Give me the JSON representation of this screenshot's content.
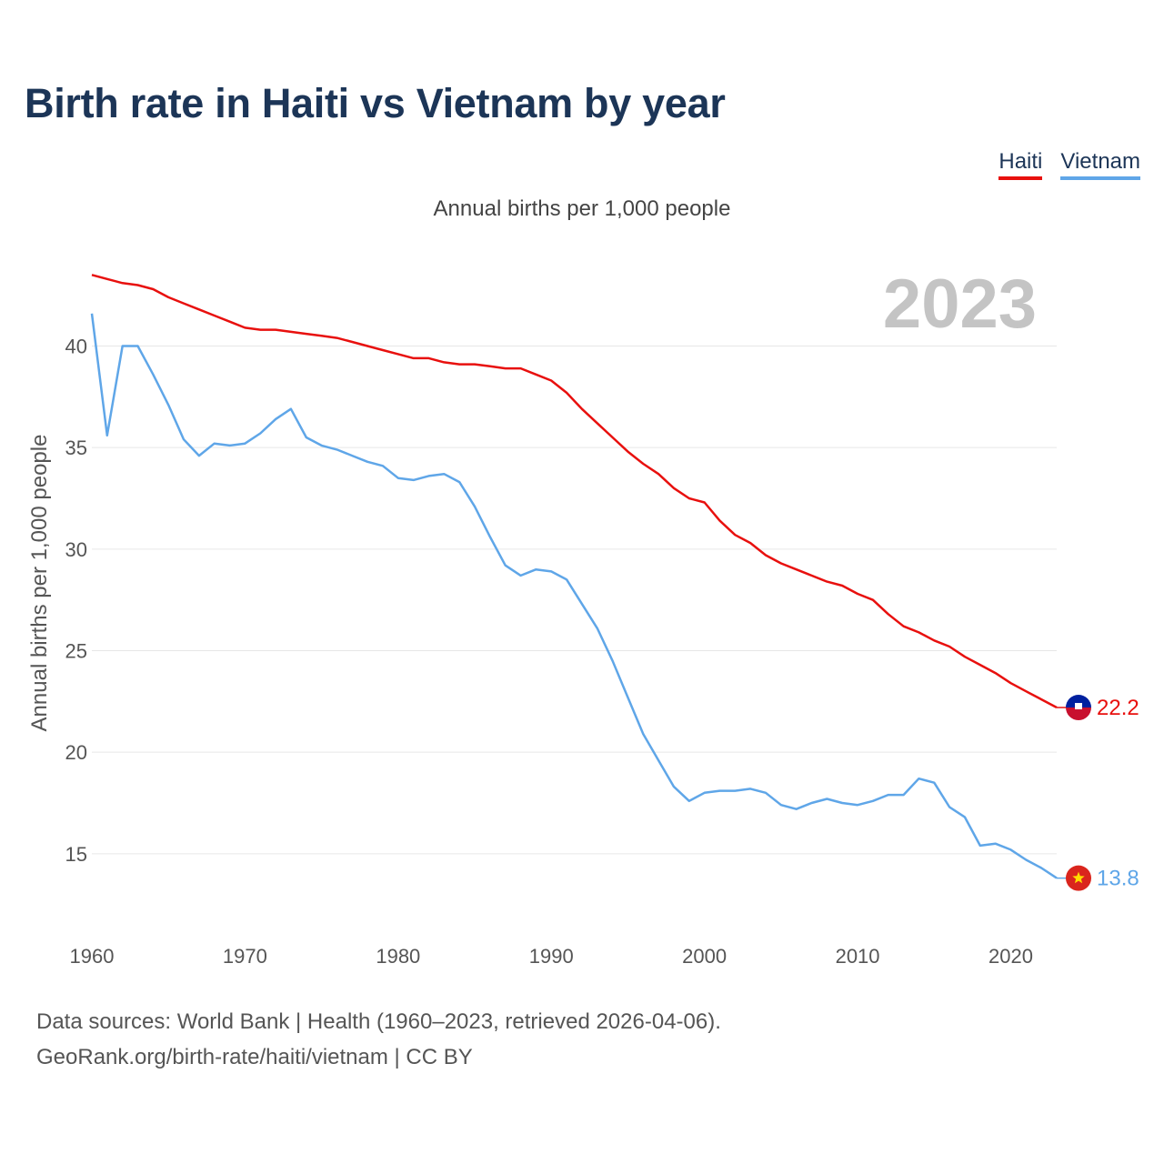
{
  "title": "Birth rate in Haiti vs Vietnam by year",
  "legend": [
    {
      "name": "Haiti",
      "color": "#e8100e"
    },
    {
      "name": "Vietnam",
      "color": "#5fa6e8"
    }
  ],
  "subtitle": "Annual births per 1,000 people",
  "footer": {
    "line1": "Data sources: World Bank | Health (1960–2023, retrieved 2026-04-06).",
    "line2": "GeoRank.org/birth-rate/haiti/vietnam | CC BY"
  },
  "chart_data": {
    "type": "line",
    "title": "Birth rate in Haiti vs Vietnam by year",
    "ylabel": "Annual births per 1,000 people",
    "xlabel": "",
    "year_watermark": "2023",
    "x": [
      1960,
      1961,
      1962,
      1963,
      1964,
      1965,
      1966,
      1967,
      1968,
      1969,
      1970,
      1971,
      1972,
      1973,
      1974,
      1975,
      1976,
      1977,
      1978,
      1979,
      1980,
      1981,
      1982,
      1983,
      1984,
      1985,
      1986,
      1987,
      1988,
      1989,
      1990,
      1991,
      1992,
      1993,
      1994,
      1995,
      1996,
      1997,
      1998,
      1999,
      2000,
      2001,
      2002,
      2003,
      2004,
      2005,
      2006,
      2007,
      2008,
      2009,
      2010,
      2011,
      2012,
      2013,
      2014,
      2015,
      2016,
      2017,
      2018,
      2019,
      2020,
      2021,
      2022,
      2023
    ],
    "xlim": [
      1960,
      2023
    ],
    "ylim": [
      11.5,
      44.5
    ],
    "xticks": [
      "1960",
      "1970",
      "1980",
      "1990",
      "2000",
      "2010",
      "2020"
    ],
    "yticks": [
      "15",
      "20",
      "25",
      "30",
      "35",
      "40"
    ],
    "grid": true,
    "series": [
      {
        "name": "Haiti",
        "color": "#e8100e",
        "end_label": "22.2",
        "values": [
          43.5,
          43.3,
          43.1,
          43.0,
          42.8,
          42.4,
          42.1,
          41.8,
          41.5,
          41.2,
          40.9,
          40.8,
          40.8,
          40.7,
          40.6,
          40.5,
          40.4,
          40.2,
          40.0,
          39.8,
          39.6,
          39.4,
          39.4,
          39.2,
          39.1,
          39.1,
          39.0,
          38.9,
          38.9,
          38.6,
          38.3,
          37.7,
          36.9,
          36.2,
          35.5,
          34.8,
          34.2,
          33.7,
          33.0,
          32.5,
          32.3,
          31.4,
          30.7,
          30.3,
          29.7,
          29.3,
          29.0,
          28.7,
          28.4,
          28.2,
          27.8,
          27.5,
          26.8,
          26.2,
          25.9,
          25.5,
          25.2,
          24.7,
          24.3,
          23.9,
          23.4,
          23.0,
          22.6,
          22.2
        ]
      },
      {
        "name": "Vietnam",
        "color": "#5fa6e8",
        "end_label": "13.8",
        "values": [
          41.6,
          35.6,
          40.0,
          40.0,
          38.6,
          37.1,
          35.4,
          34.6,
          35.2,
          35.1,
          35.2,
          35.7,
          36.4,
          36.9,
          35.5,
          35.1,
          34.9,
          34.6,
          34.3,
          34.1,
          33.5,
          33.4,
          33.6,
          33.7,
          33.3,
          32.1,
          30.6,
          29.2,
          28.7,
          29.0,
          28.9,
          28.5,
          27.3,
          26.1,
          24.5,
          22.7,
          20.9,
          19.6,
          18.3,
          17.6,
          18.0,
          18.1,
          18.1,
          18.2,
          18.0,
          17.4,
          17.2,
          17.5,
          17.7,
          17.5,
          17.4,
          17.6,
          17.9,
          17.9,
          18.7,
          18.5,
          17.3,
          16.8,
          15.4,
          15.5,
          15.2,
          14.7,
          14.3,
          13.8
        ]
      }
    ]
  }
}
